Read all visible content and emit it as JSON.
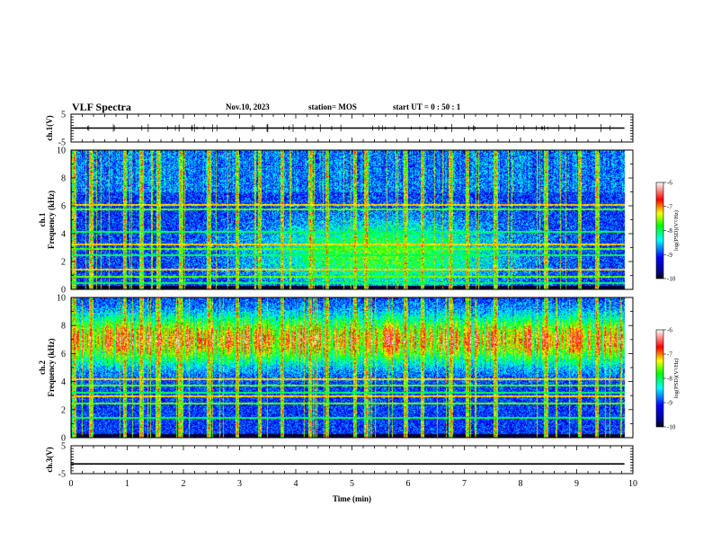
{
  "header": {
    "title": "VLF Spectra",
    "date": "Nov.10, 2023",
    "station": "station= MOS",
    "start_time": "start UT =  0 : 50 : 1"
  },
  "colors": {
    "black": "#000000",
    "dark_blue": "#00007f",
    "blue": "#0000ff",
    "cyan": "#00ffff",
    "green": "#00ff00",
    "yellow": "#ffff00",
    "red": "#ff0000",
    "white": "#ffffff"
  },
  "chart_data": [
    {
      "type": "line",
      "panel": "ch1-waveform",
      "ylabel": "ch.1(V)",
      "ylim": [
        -5,
        5
      ],
      "yticks": [
        5,
        -5
      ],
      "xlim": [
        0,
        10
      ],
      "x": [
        0,
        9.85
      ],
      "y": [
        0,
        0
      ]
    },
    {
      "type": "heatmap",
      "panel": "ch1-spectrogram",
      "ylabel": "ch.1\nFrequency (kHz)",
      "ylim": [
        0,
        10
      ],
      "yticks": [
        0,
        2,
        4,
        6,
        8,
        10
      ],
      "xlim": [
        0,
        10
      ],
      "data_end_min": 9.85,
      "colorbar": {
        "label": "log(PSD)(V²/Hz)",
        "range": [
          -10,
          -6
        ],
        "ticks": [
          -6,
          -7,
          -8,
          -9,
          -10
        ]
      },
      "band_noise_khz": [
        0.5,
        1.0,
        1.5,
        2.5,
        3.0,
        3.3,
        4.2,
        5.8,
        6.1
      ],
      "sferics_min": [
        0.05,
        0.35,
        0.95,
        1.25,
        1.55,
        1.95,
        2.45,
        2.95,
        3.35,
        3.75,
        4.25,
        4.55,
        5.05,
        5.25,
        5.95,
        6.25,
        6.75,
        7.05,
        7.55,
        8.45,
        9.05,
        9.35
      ]
    },
    {
      "type": "heatmap",
      "panel": "ch2-spectrogram",
      "ylabel": "ch.2\nFrequency (kHz)",
      "ylim": [
        0,
        10
      ],
      "yticks": [
        0,
        2,
        4,
        6,
        8,
        10
      ],
      "xlim": [
        0,
        10
      ],
      "data_end_min": 9.85,
      "colorbar": {
        "label": "log(PSD)(V²/Hz)",
        "range": [
          -10,
          -6
        ],
        "ticks": [
          -6,
          -7,
          -8,
          -9,
          -10
        ]
      },
      "band_noise_khz": [
        1.5,
        2.5,
        3.0,
        3.3,
        3.8,
        4.2
      ],
      "sferics_min": [
        0.05,
        0.35,
        0.95,
        1.25,
        1.55,
        1.95,
        2.45,
        2.95,
        3.35,
        3.75,
        4.25,
        4.55,
        5.05,
        5.25,
        5.95,
        6.25,
        6.75,
        7.05,
        7.55,
        8.45,
        9.05,
        9.35
      ]
    },
    {
      "type": "line",
      "panel": "ch3-waveform",
      "ylabel": "ch.3(V)",
      "ylim": [
        -5,
        5
      ],
      "yticks": [
        5,
        -5
      ],
      "xlim": [
        0,
        10
      ],
      "x": [
        0,
        9.85
      ],
      "y": [
        -1.5,
        -1.5
      ]
    }
  ],
  "xaxis": {
    "label": "Time (min)",
    "ticks": [
      0,
      1,
      2,
      3,
      4,
      5,
      6,
      7,
      8,
      9,
      10
    ]
  }
}
